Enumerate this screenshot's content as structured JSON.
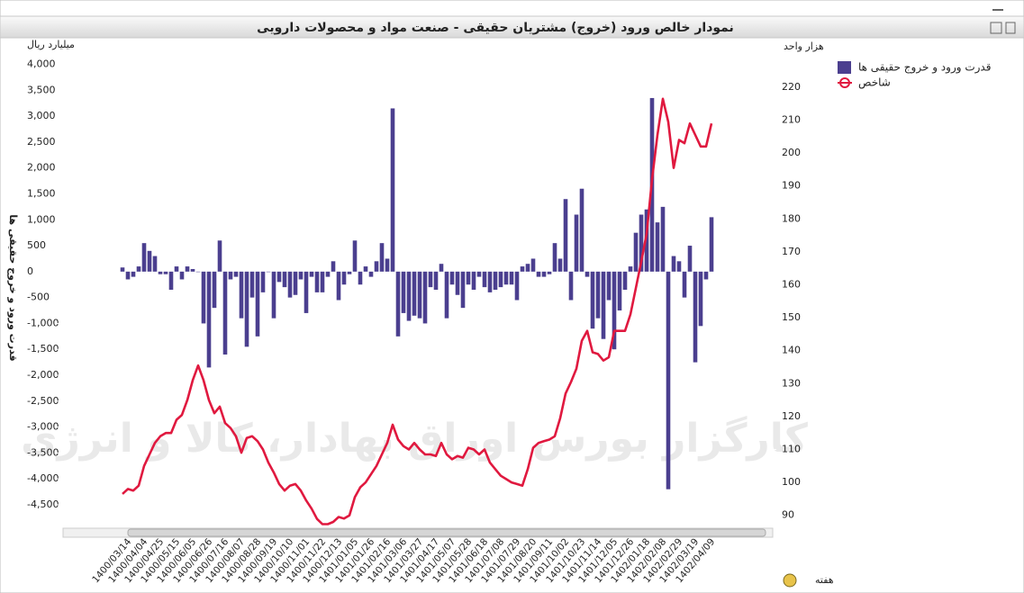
{
  "chart_data": {
    "type": "bar",
    "title": "نمودار خالص ورود (خروج) مشتریان حقیقی - صنعت مواد و محصولات دارویی",
    "y_unit": "میلیارد ریال",
    "y2_unit": "هزار واحد",
    "y_label": "قدرت ورود و خروج حقیقی ها",
    "x_label": "هفته",
    "watermark": "کارگزار بورس اوراق بهادار، کالا و انرژی",
    "categories": [
      null,
      "1400/03/14",
      null,
      null,
      "1400/04/04",
      null,
      null,
      "1400/04/25",
      null,
      null,
      "1400/05/15",
      null,
      null,
      "1400/06/05",
      null,
      null,
      "1400/06/26",
      null,
      null,
      "1400/07/16",
      null,
      null,
      "1400/08/07",
      null,
      null,
      "1400/08/28",
      null,
      null,
      "1400/09/19",
      null,
      null,
      "1400/10/10",
      null,
      null,
      "1400/11/01",
      null,
      null,
      "1400/11/22",
      null,
      null,
      "1400/12/13",
      null,
      null,
      "1401/01/05",
      null,
      null,
      "1401/01/26",
      null,
      null,
      "1401/02/16",
      null,
      null,
      "1401/03/06",
      null,
      null,
      "1401/03/27",
      null,
      null,
      "1401/04/17",
      null,
      null,
      "1401/05/07",
      null,
      null,
      "1401/05/28",
      null,
      null,
      "1401/06/18",
      null,
      null,
      "1401/07/08",
      null,
      null,
      "1401/07/29",
      null,
      null,
      "1401/08/20",
      null,
      null,
      "1401/09/11",
      null,
      null,
      "1401/10/02",
      null,
      null,
      "1401/10/23",
      null,
      null,
      "1401/11/14",
      null,
      null,
      "1401/12/05",
      null,
      null,
      "1401/12/26",
      null,
      null,
      "1402/01/18",
      null,
      null,
      "1402/02/08",
      null,
      null,
      "1402/02/29",
      null,
      null,
      "1402/03/19",
      null,
      null,
      "1402/04/09"
    ],
    "series": [
      {
        "name": "قدرت ورود و خروج حقیقی ها",
        "type": "bar",
        "axis": "y",
        "color": "#4b3f8f",
        "values": [
          80,
          -150,
          -100,
          100,
          550,
          400,
          300,
          -50,
          -50,
          -350,
          100,
          -150,
          100,
          50,
          0,
          -1000,
          -1850,
          -700,
          600,
          -1600,
          -150,
          -100,
          -900,
          -1450,
          -500,
          -1250,
          -400,
          0,
          -900,
          -200,
          -300,
          -500,
          -450,
          -150,
          -800,
          -100,
          -400,
          -400,
          -100,
          200,
          -550,
          -250,
          -50,
          600,
          -250,
          100,
          -100,
          200,
          550,
          250,
          3150,
          -1250,
          -800,
          -950,
          -850,
          -900,
          -1000,
          -300,
          -350,
          150,
          -900,
          -250,
          -450,
          -700,
          -250,
          -350,
          -100,
          -300,
          -400,
          -350,
          -300,
          -250,
          -250,
          -550,
          100,
          150,
          250,
          -100,
          -100,
          -50,
          550,
          250,
          1400,
          -550,
          1100,
          1600,
          -100,
          -1100,
          -900,
          -1300,
          -550,
          -1500,
          -750,
          -350,
          100,
          750,
          1100,
          1200,
          3350,
          950,
          1250,
          -4200,
          300,
          200,
          -500,
          500,
          -1750,
          -1050,
          -150,
          1050
        ]
      },
      {
        "name": "شاخص",
        "type": "line",
        "axis": "y2",
        "color": "#e0193f",
        "values": [
          96.5,
          98,
          97.5,
          99,
          105,
          108.5,
          112,
          114,
          115,
          115,
          119,
          120.5,
          125,
          131,
          135.5,
          131,
          125,
          121,
          123,
          118,
          116.5,
          114,
          109,
          113.5,
          114,
          112.5,
          110,
          106,
          103,
          99.5,
          97.5,
          99,
          99.5,
          97.5,
          94.5,
          92,
          88.9,
          87.3,
          87.3,
          88,
          89.5,
          89,
          90,
          95.5,
          98.5,
          100,
          102.5,
          105,
          108.5,
          112,
          117.5,
          113,
          111,
          110,
          112,
          110,
          108.5,
          108.5,
          108,
          112,
          108.5,
          107,
          108,
          107.5,
          110.5,
          110,
          108.5,
          110,
          106,
          104,
          102,
          101,
          100,
          99.5,
          99,
          104,
          110.5,
          112,
          112.5,
          113,
          114,
          119.5,
          127,
          130.5,
          134.5,
          143,
          146,
          139.5,
          139,
          137,
          138,
          146,
          146,
          146,
          151,
          159,
          167,
          175.5,
          192,
          205.5,
          216.5,
          209.5,
          195.5,
          204,
          203,
          209,
          205.5,
          202,
          202,
          209
        ]
      }
    ],
    "ylim": [
      -4900,
      4200
    ],
    "yticks": [
      {
        "value": 4000,
        "label": "4,000"
      },
      {
        "value": 3500,
        "label": "3,500"
      },
      {
        "value": 3000,
        "label": "3,000"
      },
      {
        "value": 2500,
        "label": "2,500"
      },
      {
        "value": 2000,
        "label": "2,000"
      },
      {
        "value": 1500,
        "label": "1,500"
      },
      {
        "value": 1000,
        "label": "1,000"
      },
      500,
      0,
      -500,
      {
        "value": -1000,
        "label": "-1,000"
      },
      {
        "value": -1500,
        "label": "-1,500"
      },
      {
        "value": -2000,
        "label": "-2,000"
      },
      {
        "value": -2500,
        "label": "-2,500"
      },
      {
        "value": -3000,
        "label": "-3,000"
      },
      {
        "value": -3500,
        "label": "-3,500"
      },
      {
        "value": -4000,
        "label": "-4,000"
      },
      {
        "value": -4500,
        "label": "-4,500"
      }
    ],
    "y2lim": [
      86.9,
      230.1
    ],
    "y2ticks": [
      220,
      210,
      200,
      190,
      180,
      170,
      160,
      150,
      140,
      130,
      120,
      110,
      100,
      90
    ],
    "grid": false,
    "legend": "right"
  }
}
